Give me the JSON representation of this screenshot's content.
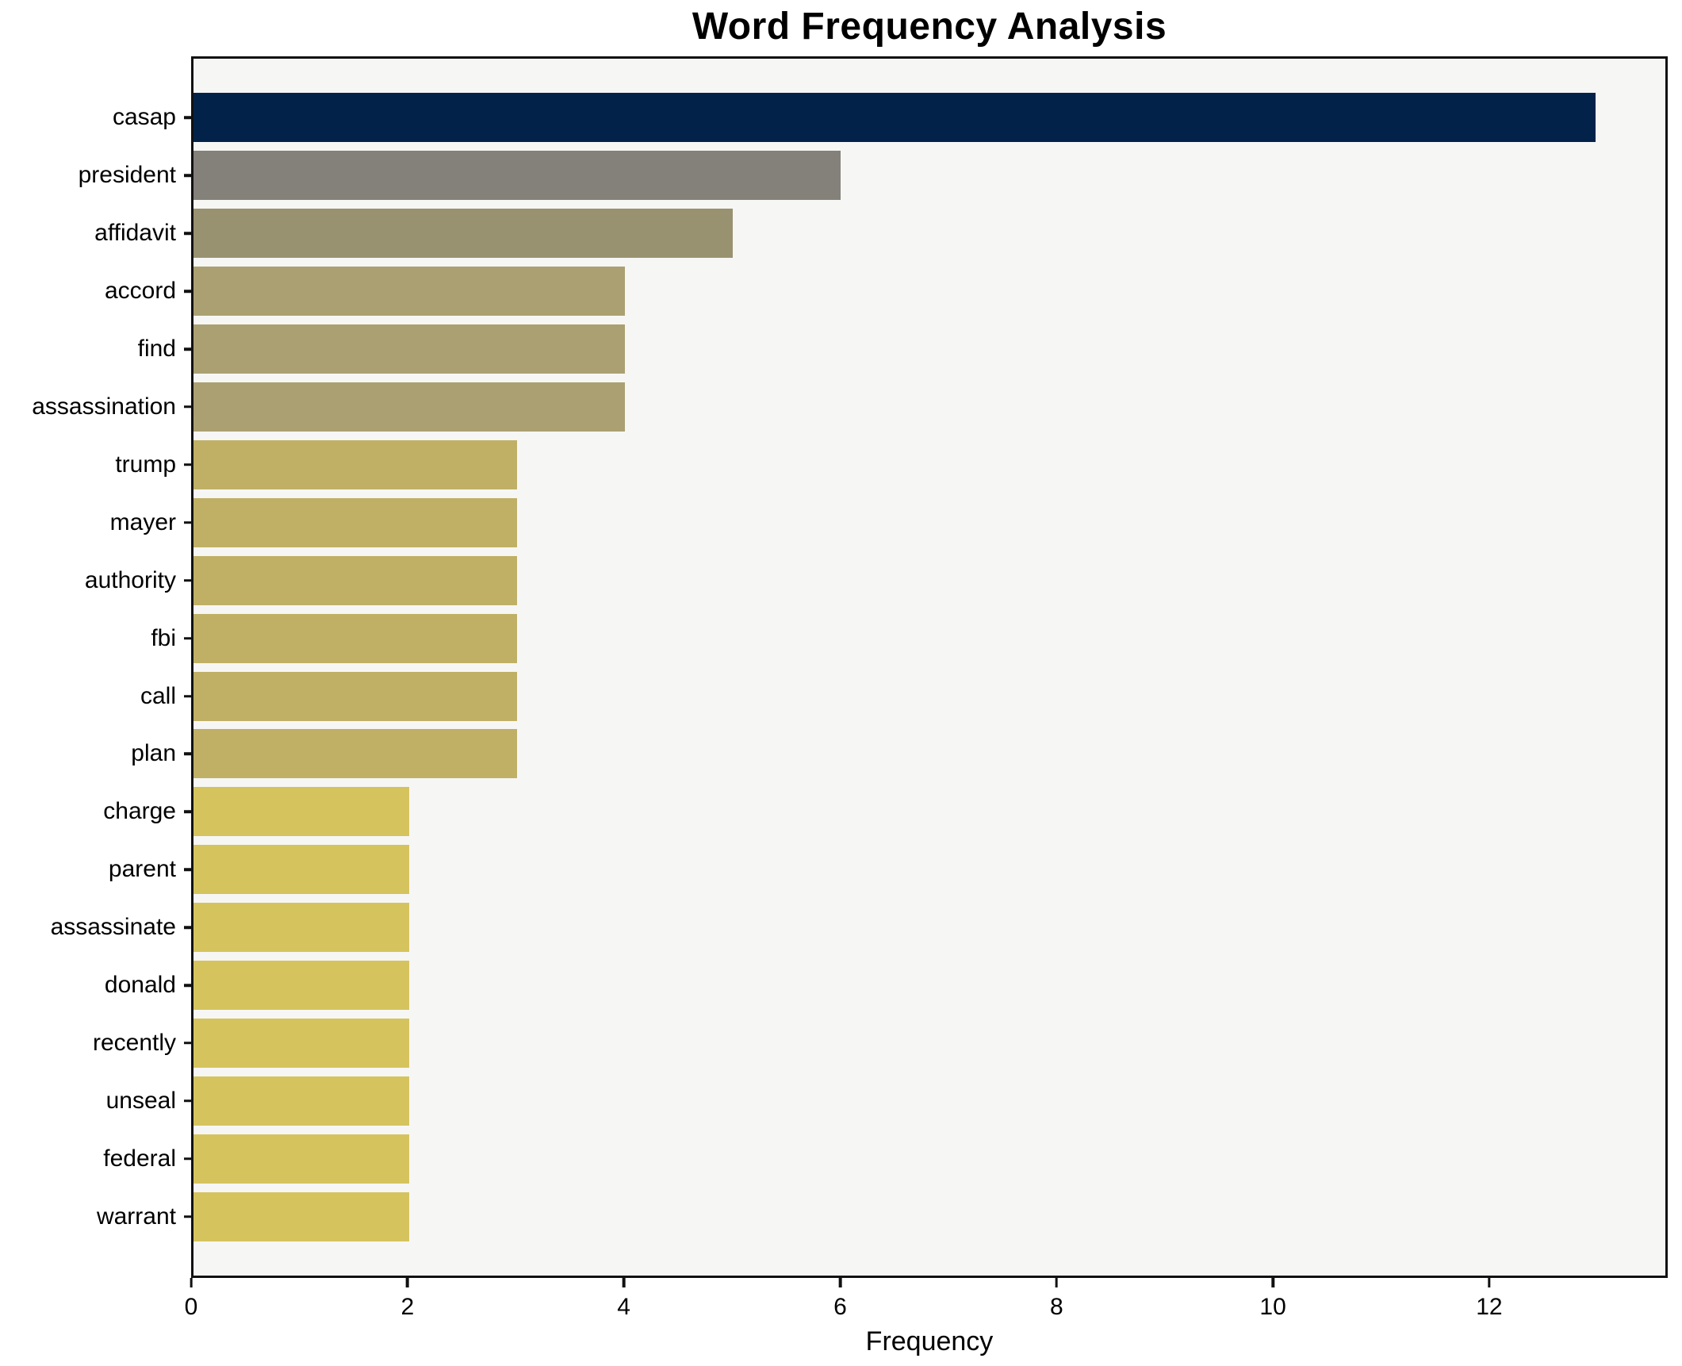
{
  "chart_data": {
    "type": "bar",
    "orientation": "horizontal",
    "title": "Word Frequency Analysis",
    "xlabel": "Frequency",
    "ylabel": "",
    "xlim": [
      0,
      13.65
    ],
    "xticks": [
      0,
      2,
      4,
      6,
      8,
      10,
      12
    ],
    "grid": false,
    "legend": "none",
    "plot_background": "#f6f6f5",
    "categories": [
      "casap",
      "president",
      "affidavit",
      "accord",
      "find",
      "assassination",
      "trump",
      "mayer",
      "authority",
      "fbi",
      "call",
      "plan",
      "charge",
      "parent",
      "assassinate",
      "donald",
      "recently",
      "unseal",
      "federal",
      "warrant"
    ],
    "values": [
      13,
      6,
      5,
      4,
      4,
      4,
      3,
      3,
      3,
      3,
      3,
      3,
      2,
      2,
      2,
      2,
      2,
      2,
      2,
      2
    ],
    "bar_colors": [
      "#03224a",
      "#84817a",
      "#999270",
      "#aba071",
      "#aba071",
      "#aba071",
      "#bfb066",
      "#bfb066",
      "#bfb066",
      "#bfb066",
      "#bfb066",
      "#bfb066",
      "#d5c45e",
      "#d5c45e",
      "#d5c45e",
      "#d5c45e",
      "#d5c45e",
      "#d5c45e",
      "#d5c45e",
      "#d5c45e"
    ]
  }
}
